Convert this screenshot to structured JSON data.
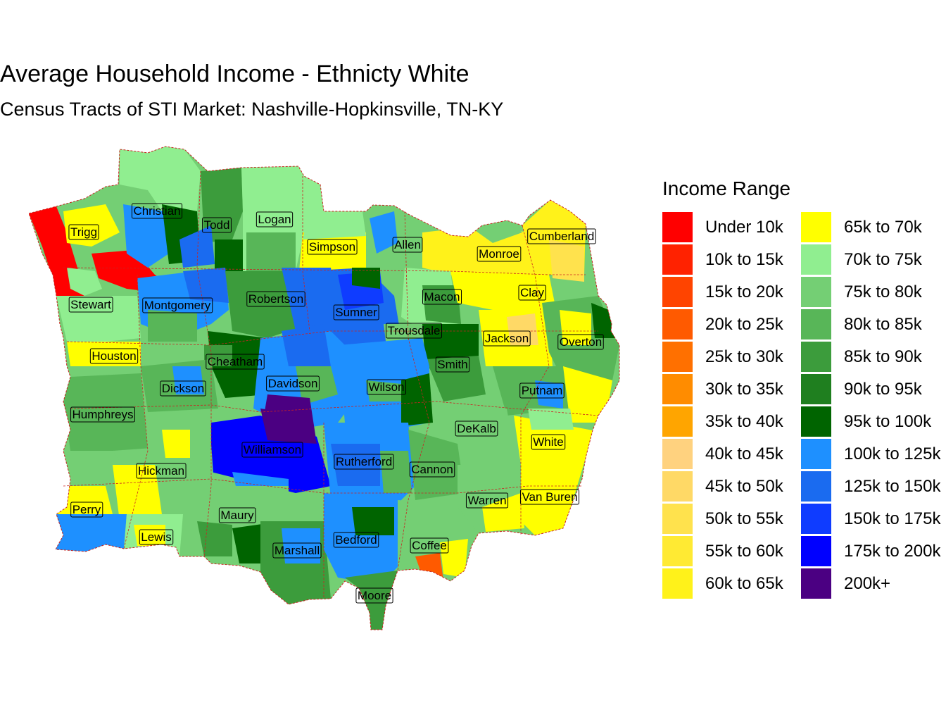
{
  "title": "Average Household Income - Ethnicty White",
  "subtitle": "Census Tracts of STI Market: Nashville-Hopkinsville, TN-KY",
  "legend": {
    "title": "Income Range",
    "items": [
      {
        "label": "Under 10k",
        "color": "#FF0000"
      },
      {
        "label": "10k to 15k",
        "color": "#FF2200"
      },
      {
        "label": "15k to 20k",
        "color": "#FF4400"
      },
      {
        "label": "20k to 25k",
        "color": "#FF5A00"
      },
      {
        "label": "25k to 30k",
        "color": "#FF7000"
      },
      {
        "label": "30k to 35k",
        "color": "#FF8C00"
      },
      {
        "label": "35k to 40k",
        "color": "#FFA500"
      },
      {
        "label": "40k to 45k",
        "color": "#FFD27F"
      },
      {
        "label": "45k to 50k",
        "color": "#FFD966"
      },
      {
        "label": "50k to 55k",
        "color": "#FFE24D"
      },
      {
        "label": "55k to 60k",
        "color": "#FFEA33"
      },
      {
        "label": "60k to 65k",
        "color": "#FFF21A"
      },
      {
        "label": "65k to 70k",
        "color": "#FFFF00"
      },
      {
        "label": "70k to 75k",
        "color": "#90EE90"
      },
      {
        "label": "75k to 80k",
        "color": "#74CF74"
      },
      {
        "label": "80k to 85k",
        "color": "#58B658"
      },
      {
        "label": "85k to 90k",
        "color": "#3C9C3C"
      },
      {
        "label": "90k to 95k",
        "color": "#1F7F1F"
      },
      {
        "label": "95k to 100k",
        "color": "#006400"
      },
      {
        "label": "100k to 125k",
        "color": "#1E90FF"
      },
      {
        "label": "125k to 150k",
        "color": "#1A6BF0"
      },
      {
        "label": "150k to 175k",
        "color": "#0F3CFF"
      },
      {
        "label": "175k to 200k",
        "color": "#0000FF"
      },
      {
        "label": "200k+",
        "color": "#4B0082"
      }
    ]
  },
  "counties": [
    {
      "name": "Trigg",
      "color": "#90EE90"
    },
    {
      "name": "Christian",
      "color": "#58B658"
    },
    {
      "name": "Todd",
      "color": "#3C9C3C"
    },
    {
      "name": "Logan",
      "color": "#90EE90"
    },
    {
      "name": "Simpson",
      "color": "#FFFF00"
    },
    {
      "name": "Allen",
      "color": "#74CF74"
    },
    {
      "name": "Monroe",
      "color": "#FFF21A"
    },
    {
      "name": "Cumberland",
      "color": "#FFEA33"
    },
    {
      "name": "Stewart",
      "color": "#90EE90"
    },
    {
      "name": "Montgomery",
      "color": "#1E90FF"
    },
    {
      "name": "Robertson",
      "color": "#3C9C3C"
    },
    {
      "name": "Sumner",
      "color": "#1E90FF"
    },
    {
      "name": "Macon",
      "color": "#74CF74"
    },
    {
      "name": "Clay",
      "color": "#FFFF00"
    },
    {
      "name": "Trousdale",
      "color": "#74CF74"
    },
    {
      "name": "Jackson",
      "color": "#FFFF00"
    },
    {
      "name": "Overton",
      "color": "#58B658"
    },
    {
      "name": "Houston",
      "color": "#58B658"
    },
    {
      "name": "Cheatham",
      "color": "#1F7F1F"
    },
    {
      "name": "Smith",
      "color": "#3C9C3C"
    },
    {
      "name": "Davidson",
      "color": "#1E90FF"
    },
    {
      "name": "Wilson",
      "color": "#1E90FF"
    },
    {
      "name": "Dickson",
      "color": "#58B658"
    },
    {
      "name": "Putnam",
      "color": "#58B658"
    },
    {
      "name": "Humphreys",
      "color": "#58B658"
    },
    {
      "name": "DeKalb",
      "color": "#74CF74"
    },
    {
      "name": "White",
      "color": "#FFFF00"
    },
    {
      "name": "Williamson",
      "color": "#0000FF"
    },
    {
      "name": "Rutherford",
      "color": "#1E90FF"
    },
    {
      "name": "Cannon",
      "color": "#58B658"
    },
    {
      "name": "Hickman",
      "color": "#74CF74"
    },
    {
      "name": "Van Buren",
      "color": "#FFFF00"
    },
    {
      "name": "Perry",
      "color": "#FFFF00"
    },
    {
      "name": "Warren",
      "color": "#74CF74"
    },
    {
      "name": "Maury",
      "color": "#74CF74"
    },
    {
      "name": "Lewis",
      "color": "#90EE90"
    },
    {
      "name": "Marshall",
      "color": "#3C9C3C"
    },
    {
      "name": "Bedford",
      "color": "#1E90FF"
    },
    {
      "name": "Coffee",
      "color": "#74CF74"
    },
    {
      "name": "Moore",
      "color": "#3C9C3C"
    }
  ]
}
